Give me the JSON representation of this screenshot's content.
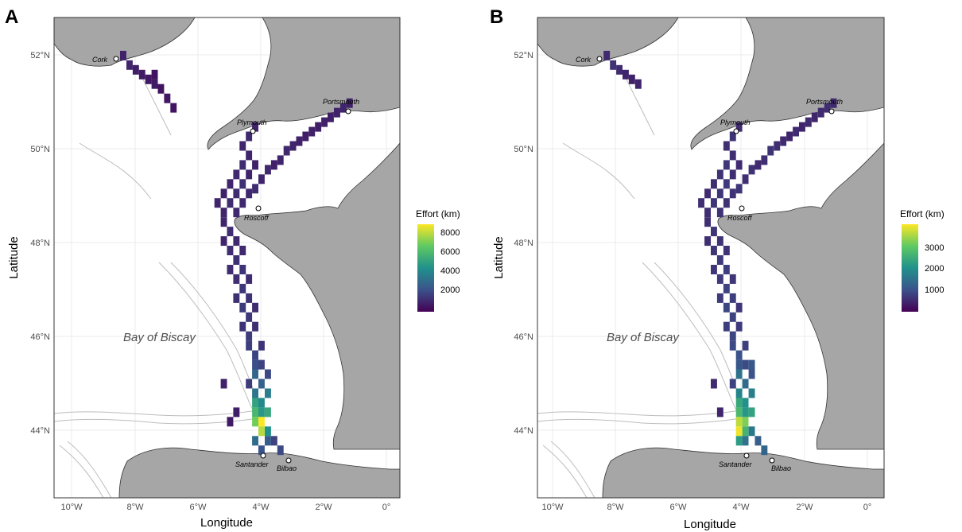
{
  "panels": [
    {
      "id": "A",
      "letter": "A",
      "xlabel": "Longitude",
      "ylabel": "Latitude",
      "xticks": [
        "10°W",
        "8°W",
        "6°W",
        "4°W",
        "2°W",
        "0°"
      ],
      "yticks": [
        "52°N",
        "50°N",
        "48°N",
        "46°N",
        "44°N"
      ],
      "legend_title": "Effort (km)",
      "legend_ticks": [
        "8000",
        "6000",
        "4000",
        "2000"
      ]
    },
    {
      "id": "B",
      "letter": "B",
      "xlabel": "Longitude",
      "ylabel": "Latitude",
      "xticks": [
        "10°W",
        "8°W",
        "6°W",
        "4°W",
        "2°W",
        "0°"
      ],
      "yticks": [
        "52°N",
        "50°N",
        "48°N",
        "46°N",
        "44°N"
      ],
      "legend_title": "Effort (km)",
      "legend_ticks": [
        "3000",
        "2000",
        "1000"
      ]
    }
  ],
  "places": {
    "cork": "Cork",
    "plymouth": "Plymouth",
    "portsmouth": "Portsmouth",
    "roscoff": "Roscoff",
    "santander": "Santander",
    "bilbao": "Bilbao",
    "bay": "Bay of Biscay"
  },
  "colors": {
    "land": "#a6a6a6",
    "sea": "#ffffff",
    "bathymetry": "#bdbdbd",
    "grid": "#ebebeb",
    "viridis_low": "#440154",
    "viridis_mid": "#21918c",
    "viridis_high": "#fde725"
  },
  "chart_data": [
    {
      "type": "heatmap",
      "title": "A",
      "xlabel": "Longitude",
      "ylabel": "Latitude",
      "xlim": [
        -10.5,
        0.5
      ],
      "ylim": [
        42.5,
        52.6
      ],
      "legend": "right",
      "color_scale": "viridis",
      "color_ticks": [
        8000,
        6000,
        4000,
        2000
      ],
      "color_range": [
        0,
        9000
      ],
      "cells": [
        [
          -8.3,
          51.8,
          900
        ],
        [
          -8.1,
          51.6,
          1000
        ],
        [
          -7.9,
          51.5,
          800
        ],
        [
          -7.7,
          51.4,
          700
        ],
        [
          -7.5,
          51.3,
          600
        ],
        [
          -7.3,
          51.2,
          700
        ],
        [
          -7.1,
          51.1,
          500
        ],
        [
          -6.9,
          50.9,
          600
        ],
        [
          -6.7,
          50.7,
          500
        ],
        [
          -7.3,
          51.4,
          500
        ],
        [
          -1.1,
          50.8,
          900
        ],
        [
          -1.3,
          50.7,
          1000
        ],
        [
          -1.5,
          50.6,
          900
        ],
        [
          -1.7,
          50.5,
          800
        ],
        [
          -1.9,
          50.4,
          900
        ],
        [
          -2.1,
          50.3,
          800
        ],
        [
          -2.3,
          50.2,
          900
        ],
        [
          -2.5,
          50.1,
          800
        ],
        [
          -2.7,
          50.0,
          900
        ],
        [
          -2.9,
          49.9,
          1000
        ],
        [
          -3.1,
          49.8,
          1100
        ],
        [
          -3.3,
          49.6,
          1000
        ],
        [
          -3.5,
          49.5,
          900
        ],
        [
          -3.7,
          49.4,
          1100
        ],
        [
          -3.9,
          49.2,
          1000
        ],
        [
          -4.1,
          49.0,
          1200
        ],
        [
          -4.1,
          50.3,
          900
        ],
        [
          -4.3,
          50.1,
          1100
        ],
        [
          -4.5,
          49.9,
          1000
        ],
        [
          -4.3,
          49.7,
          1000
        ],
        [
          -4.1,
          49.5,
          900
        ],
        [
          -4.5,
          49.5,
          1200
        ],
        [
          -4.7,
          49.3,
          1100
        ],
        [
          -4.3,
          49.3,
          1000
        ],
        [
          -4.9,
          49.1,
          1000
        ],
        [
          -4.5,
          49.1,
          1300
        ],
        [
          -4.7,
          48.9,
          1200
        ],
        [
          -5.1,
          48.9,
          900
        ],
        [
          -4.3,
          48.9,
          1100
        ],
        [
          -5.3,
          48.7,
          1000
        ],
        [
          -4.9,
          48.7,
          1200
        ],
        [
          -4.5,
          48.7,
          1100
        ],
        [
          -5.1,
          48.5,
          1000
        ],
        [
          -4.7,
          48.5,
          1100
        ],
        [
          -5.1,
          48.3,
          1000
        ],
        [
          -4.9,
          48.1,
          1200
        ],
        [
          -4.7,
          47.9,
          1100
        ],
        [
          -5.1,
          47.9,
          1000
        ],
        [
          -4.9,
          47.7,
          1200
        ],
        [
          -4.7,
          47.5,
          1300
        ],
        [
          -4.5,
          47.7,
          1100
        ],
        [
          -4.9,
          47.3,
          1200
        ],
        [
          -4.5,
          47.3,
          1400
        ],
        [
          -4.7,
          47.1,
          1300
        ],
        [
          -4.3,
          47.1,
          1200
        ],
        [
          -4.5,
          46.9,
          1500
        ],
        [
          -4.7,
          46.7,
          1300
        ],
        [
          -4.3,
          46.7,
          1400
        ],
        [
          -4.5,
          46.5,
          1600
        ],
        [
          -4.3,
          46.3,
          1500
        ],
        [
          -4.1,
          46.5,
          1200
        ],
        [
          -4.5,
          46.1,
          1400
        ],
        [
          -4.3,
          45.9,
          1600
        ],
        [
          -4.1,
          46.1,
          1300
        ],
        [
          -4.3,
          45.7,
          1700
        ],
        [
          -4.1,
          45.5,
          1900
        ],
        [
          -3.9,
          45.7,
          1400
        ],
        [
          -4.1,
          45.3,
          2200
        ],
        [
          -3.9,
          45.3,
          1800
        ],
        [
          -4.1,
          45.1,
          3000
        ],
        [
          -3.9,
          44.9,
          2800
        ],
        [
          -3.7,
          45.1,
          2000
        ],
        [
          -4.3,
          44.9,
          1600
        ],
        [
          -4.1,
          44.7,
          3500
        ],
        [
          -3.9,
          44.5,
          4200
        ],
        [
          -3.7,
          44.7,
          3800
        ],
        [
          -4.1,
          44.5,
          5200
        ],
        [
          -4.1,
          44.3,
          6000
        ],
        [
          -3.9,
          44.3,
          4800
        ],
        [
          -3.7,
          44.3,
          5400
        ],
        [
          -4.1,
          44.1,
          7000
        ],
        [
          -3.9,
          44.1,
          9000
        ],
        [
          -3.7,
          43.9,
          4500
        ],
        [
          -3.9,
          43.9,
          8000
        ],
        [
          -4.1,
          43.7,
          3200
        ],
        [
          -3.7,
          43.7,
          2600
        ],
        [
          -3.5,
          43.7,
          1800
        ],
        [
          -3.3,
          43.5,
          2000
        ],
        [
          -3.9,
          43.5,
          2300
        ],
        [
          -5.1,
          44.9,
          900
        ],
        [
          -4.7,
          44.3,
          800
        ],
        [
          -4.9,
          44.1,
          700
        ]
      ]
    },
    {
      "type": "heatmap",
      "title": "B",
      "xlabel": "Longitude",
      "ylabel": "Latitude",
      "xlim": [
        -10.5,
        0.5
      ],
      "ylim": [
        42.5,
        52.6
      ],
      "legend": "right",
      "color_scale": "viridis",
      "color_ticks": [
        3000,
        2000,
        1000
      ],
      "color_range": [
        0,
        4000
      ],
      "cells": [
        [
          -8.3,
          51.8,
          500
        ],
        [
          -8.1,
          51.6,
          600
        ],
        [
          -7.9,
          51.5,
          500
        ],
        [
          -7.7,
          51.4,
          450
        ],
        [
          -7.5,
          51.3,
          400
        ],
        [
          -7.3,
          51.2,
          450
        ],
        [
          -1.1,
          50.8,
          500
        ],
        [
          -1.3,
          50.7,
          550
        ],
        [
          -1.5,
          50.6,
          500
        ],
        [
          -1.7,
          50.5,
          450
        ],
        [
          -1.9,
          50.4,
          500
        ],
        [
          -2.1,
          50.3,
          450
        ],
        [
          -2.3,
          50.2,
          500
        ],
        [
          -2.5,
          50.1,
          450
        ],
        [
          -2.7,
          50.0,
          500
        ],
        [
          -2.9,
          49.9,
          550
        ],
        [
          -3.1,
          49.8,
          600
        ],
        [
          -3.3,
          49.6,
          550
        ],
        [
          -3.5,
          49.5,
          500
        ],
        [
          -3.7,
          49.4,
          600
        ],
        [
          -3.9,
          49.2,
          550
        ],
        [
          -4.1,
          49.0,
          650
        ],
        [
          -4.1,
          50.3,
          500
        ],
        [
          -4.3,
          50.1,
          600
        ],
        [
          -4.5,
          49.9,
          550
        ],
        [
          -4.3,
          49.7,
          550
        ],
        [
          -4.1,
          49.5,
          500
        ],
        [
          -4.5,
          49.5,
          650
        ],
        [
          -4.7,
          49.3,
          600
        ],
        [
          -4.3,
          49.3,
          550
        ],
        [
          -4.9,
          49.1,
          550
        ],
        [
          -4.5,
          49.1,
          700
        ],
        [
          -4.7,
          48.9,
          650
        ],
        [
          -5.1,
          48.9,
          500
        ],
        [
          -4.3,
          48.9,
          600
        ],
        [
          -5.3,
          48.7,
          550
        ],
        [
          -4.9,
          48.7,
          650
        ],
        [
          -4.5,
          48.7,
          600
        ],
        [
          -5.1,
          48.5,
          550
        ],
        [
          -4.7,
          48.5,
          600
        ],
        [
          -5.1,
          48.3,
          550
        ],
        [
          -4.9,
          48.1,
          650
        ],
        [
          -4.7,
          47.9,
          600
        ],
        [
          -5.1,
          47.9,
          550
        ],
        [
          -4.9,
          47.7,
          650
        ],
        [
          -4.7,
          47.5,
          700
        ],
        [
          -4.5,
          47.7,
          600
        ],
        [
          -4.9,
          47.3,
          650
        ],
        [
          -4.5,
          47.3,
          750
        ],
        [
          -4.7,
          47.1,
          700
        ],
        [
          -4.3,
          47.1,
          650
        ],
        [
          -4.5,
          46.9,
          800
        ],
        [
          -4.7,
          46.7,
          700
        ],
        [
          -4.3,
          46.7,
          750
        ],
        [
          -4.5,
          46.5,
          850
        ],
        [
          -4.3,
          46.3,
          800
        ],
        [
          -4.1,
          46.5,
          650
        ],
        [
          -4.5,
          46.1,
          750
        ],
        [
          -4.3,
          45.9,
          850
        ],
        [
          -4.1,
          46.1,
          700
        ],
        [
          -4.3,
          45.7,
          900
        ],
        [
          -4.1,
          45.5,
          1000
        ],
        [
          -3.9,
          45.7,
          750
        ],
        [
          -4.1,
          45.3,
          1100
        ],
        [
          -3.9,
          45.3,
          900
        ],
        [
          -4.1,
          45.1,
          1500
        ],
        [
          -3.9,
          44.9,
          1400
        ],
        [
          -3.7,
          45.1,
          1000
        ],
        [
          -4.3,
          44.9,
          800
        ],
        [
          -4.1,
          44.7,
          1800
        ],
        [
          -3.9,
          44.5,
          2000
        ],
        [
          -3.7,
          44.7,
          1700
        ],
        [
          -4.1,
          44.5,
          2400
        ],
        [
          -4.1,
          44.3,
          2700
        ],
        [
          -3.9,
          44.3,
          2100
        ],
        [
          -3.7,
          44.3,
          2300
        ],
        [
          -4.1,
          44.1,
          3600
        ],
        [
          -3.9,
          44.1,
          3200
        ],
        [
          -3.9,
          43.9,
          2600
        ],
        [
          -4.1,
          43.9,
          3900
        ],
        [
          -4.1,
          43.7,
          2200
        ],
        [
          -3.7,
          43.9,
          1600
        ],
        [
          -3.5,
          43.7,
          1200
        ],
        [
          -3.3,
          43.5,
          1300
        ],
        [
          -3.9,
          43.7,
          1500
        ],
        [
          -3.7,
          45.3,
          1100
        ],
        [
          -4.9,
          44.9,
          500
        ],
        [
          -4.7,
          44.3,
          450
        ]
      ]
    }
  ]
}
